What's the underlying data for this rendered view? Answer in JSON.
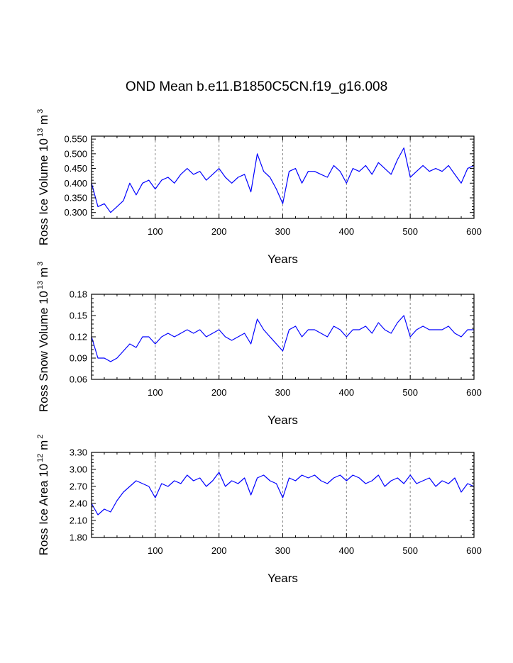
{
  "figure": {
    "title": "OND Mean b.e11.B1850C5CN.f19_g16.008"
  },
  "colors": {
    "series": "#0000ff",
    "axis": "#000000",
    "grid": "#888888"
  },
  "chart_data": [
    {
      "type": "line",
      "title": "",
      "xlabel": "Years",
      "ylabel": "Ross Ice Volume 10^13 m^3",
      "ylabel_parts": {
        "main": "Ross Ice Volume 10",
        "exp1": "13",
        "mid": " m",
        "exp2": "3"
      },
      "xlim": [
        0,
        600
      ],
      "ylim": [
        0.28,
        0.56
      ],
      "xticks": [
        100,
        200,
        300,
        400,
        500,
        600
      ],
      "yticks": [
        0.3,
        0.35,
        0.4,
        0.45,
        0.5,
        0.55
      ],
      "ytick_labels": [
        "0.300",
        "0.350",
        "0.400",
        "0.450",
        "0.500",
        "0.550"
      ],
      "grid_x": [
        100,
        200,
        300,
        400,
        500
      ],
      "series": [
        {
          "name": "Ross Ice Volume",
          "x": [
            0,
            10,
            20,
            30,
            40,
            50,
            60,
            70,
            80,
            90,
            100,
            110,
            120,
            130,
            140,
            150,
            160,
            170,
            180,
            190,
            200,
            210,
            220,
            230,
            240,
            250,
            260,
            270,
            280,
            290,
            300,
            310,
            320,
            330,
            340,
            350,
            360,
            370,
            380,
            390,
            400,
            410,
            420,
            430,
            440,
            450,
            460,
            470,
            480,
            490,
            500,
            510,
            520,
            530,
            540,
            550,
            560,
            570,
            580,
            590,
            600
          ],
          "values": [
            0.4,
            0.32,
            0.33,
            0.3,
            0.32,
            0.34,
            0.4,
            0.36,
            0.4,
            0.41,
            0.38,
            0.41,
            0.42,
            0.4,
            0.43,
            0.45,
            0.43,
            0.44,
            0.41,
            0.43,
            0.45,
            0.42,
            0.4,
            0.42,
            0.43,
            0.37,
            0.5,
            0.44,
            0.42,
            0.38,
            0.33,
            0.44,
            0.45,
            0.4,
            0.44,
            0.44,
            0.43,
            0.42,
            0.46,
            0.44,
            0.4,
            0.45,
            0.44,
            0.46,
            0.43,
            0.47,
            0.45,
            0.43,
            0.48,
            0.52,
            0.42,
            0.44,
            0.46,
            0.44,
            0.45,
            0.44,
            0.46,
            0.43,
            0.4,
            0.45,
            0.46
          ]
        }
      ]
    },
    {
      "type": "line",
      "title": "",
      "xlabel": "Years",
      "ylabel": "Ross Snow Volume 10^13 m^3",
      "ylabel_parts": {
        "main": "Ross Snow Volume 10",
        "exp1": "13",
        "mid": " m",
        "exp2": "3"
      },
      "xlim": [
        0,
        600
      ],
      "ylim": [
        0.06,
        0.18
      ],
      "xticks": [
        100,
        200,
        300,
        400,
        500,
        600
      ],
      "yticks": [
        0.06,
        0.09,
        0.12,
        0.15,
        0.18
      ],
      "ytick_labels": [
        "0.06",
        "0.09",
        "0.12",
        "0.15",
        "0.18"
      ],
      "grid_x": [
        100,
        200,
        300,
        400,
        500
      ],
      "series": [
        {
          "name": "Ross Snow Volume",
          "x": [
            0,
            10,
            20,
            30,
            40,
            50,
            60,
            70,
            80,
            90,
            100,
            110,
            120,
            130,
            140,
            150,
            160,
            170,
            180,
            190,
            200,
            210,
            220,
            230,
            240,
            250,
            260,
            270,
            280,
            290,
            300,
            310,
            320,
            330,
            340,
            350,
            360,
            370,
            380,
            390,
            400,
            410,
            420,
            430,
            440,
            450,
            460,
            470,
            480,
            490,
            500,
            510,
            520,
            530,
            540,
            550,
            560,
            570,
            580,
            590,
            600
          ],
          "values": [
            0.12,
            0.09,
            0.09,
            0.085,
            0.09,
            0.1,
            0.11,
            0.105,
            0.12,
            0.12,
            0.11,
            0.12,
            0.125,
            0.12,
            0.125,
            0.13,
            0.125,
            0.13,
            0.12,
            0.125,
            0.13,
            0.12,
            0.115,
            0.12,
            0.125,
            0.11,
            0.145,
            0.13,
            0.12,
            0.11,
            0.1,
            0.13,
            0.135,
            0.12,
            0.13,
            0.13,
            0.125,
            0.12,
            0.135,
            0.13,
            0.12,
            0.13,
            0.13,
            0.135,
            0.125,
            0.14,
            0.13,
            0.125,
            0.14,
            0.15,
            0.12,
            0.13,
            0.135,
            0.13,
            0.13,
            0.13,
            0.135,
            0.125,
            0.12,
            0.13,
            0.13
          ]
        }
      ]
    },
    {
      "type": "line",
      "title": "",
      "xlabel": "Years",
      "ylabel": "Ross Ice Area 10^12 m^2",
      "ylabel_parts": {
        "main": "Ross Ice Area 10",
        "exp1": "12",
        "mid": " m",
        "exp2": "2"
      },
      "xlim": [
        0,
        600
      ],
      "ylim": [
        1.8,
        3.3
      ],
      "xticks": [
        100,
        200,
        300,
        400,
        500,
        600
      ],
      "yticks": [
        1.8,
        2.1,
        2.4,
        2.7,
        3.0,
        3.3
      ],
      "ytick_labels": [
        "1.80",
        "2.10",
        "2.40",
        "2.70",
        "3.00",
        "3.30"
      ],
      "grid_x": [
        100,
        200,
        300,
        400,
        500
      ],
      "series": [
        {
          "name": "Ross Ice Area",
          "x": [
            0,
            10,
            20,
            30,
            40,
            50,
            60,
            70,
            80,
            90,
            100,
            110,
            120,
            130,
            140,
            150,
            160,
            170,
            180,
            190,
            200,
            210,
            220,
            230,
            240,
            250,
            260,
            270,
            280,
            290,
            300,
            310,
            320,
            330,
            340,
            350,
            360,
            370,
            380,
            390,
            400,
            410,
            420,
            430,
            440,
            450,
            460,
            470,
            480,
            490,
            500,
            510,
            520,
            530,
            540,
            550,
            560,
            570,
            580,
            590,
            600
          ],
          "values": [
            2.4,
            2.2,
            2.3,
            2.25,
            2.45,
            2.6,
            2.7,
            2.8,
            2.75,
            2.7,
            2.5,
            2.75,
            2.7,
            2.8,
            2.75,
            2.9,
            2.8,
            2.85,
            2.7,
            2.8,
            2.95,
            2.7,
            2.8,
            2.75,
            2.85,
            2.55,
            2.85,
            2.9,
            2.8,
            2.75,
            2.5,
            2.85,
            2.8,
            2.9,
            2.85,
            2.9,
            2.8,
            2.75,
            2.85,
            2.9,
            2.8,
            2.9,
            2.85,
            2.75,
            2.8,
            2.9,
            2.7,
            2.8,
            2.85,
            2.75,
            2.9,
            2.75,
            2.8,
            2.85,
            2.7,
            2.8,
            2.75,
            2.85,
            2.6,
            2.75,
            2.7
          ]
        }
      ]
    }
  ]
}
